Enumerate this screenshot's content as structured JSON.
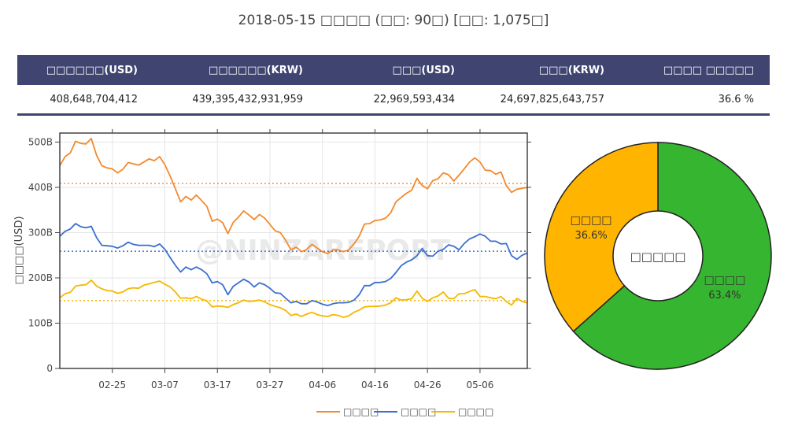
{
  "header": {
    "title": "2018-05-15 □□□□ (□□: 90□)   [□□: 1,075□]"
  },
  "summary": {
    "columns": [
      "□□□□□□(USD)",
      "□□□□□□(KRW)",
      "□□□(USD)",
      "□□□(KRW)",
      "□□□□ □□□□□"
    ],
    "values": [
      "408,648,704,412",
      "439,395,432,931,959",
      "22,969,593,434",
      "24,697,825,643,757",
      "36.6 %"
    ]
  },
  "colors": {
    "total": "#f28a2e",
    "buy": "#3b6fcf",
    "sell": "#f5b800",
    "pie_green": "#36b530",
    "pie_yellow": "#ffb400",
    "header_bg": "#3f4470"
  },
  "chart_data": [
    {
      "type": "line",
      "ylabel": "□□□□(USD)",
      "ylim": [
        0,
        520
      ],
      "yticks": [
        0,
        100,
        200,
        300,
        400,
        500
      ],
      "ytick_labels": [
        "0",
        "100B",
        "200B",
        "300B",
        "400B",
        "500B"
      ],
      "x_start": "2018-02-15",
      "x_end": "2018-05-15",
      "xtick_labels": [
        "02-25",
        "03-07",
        "03-17",
        "03-27",
        "04-06",
        "04-16",
        "04-26",
        "05-06"
      ],
      "grid": true,
      "legend_position": "bottom",
      "watermark": "@NINZAREPORT",
      "series": [
        {
          "name": "□□□□",
          "color_key": "total",
          "mean": 408.6,
          "values": [
            448,
            468,
            476,
            502,
            497,
            496,
            508,
            471,
            448,
            443,
            441,
            432,
            440,
            455,
            452,
            449,
            456,
            463,
            459,
            468,
            450,
            425,
            397,
            368,
            380,
            372,
            383,
            371,
            358,
            325,
            330,
            322,
            298,
            322,
            334,
            348,
            339,
            329,
            340,
            332,
            318,
            304,
            300,
            283,
            262,
            268,
            258,
            263,
            274,
            266,
            258,
            254,
            262,
            262,
            258,
            262,
            275,
            292,
            319,
            320,
            327,
            328,
            332,
            344,
            368,
            378,
            387,
            394,
            420,
            404,
            397,
            415,
            419,
            432,
            428,
            414,
            427,
            441,
            456,
            465,
            456,
            438,
            437,
            429,
            434,
            404,
            389,
            396,
            398,
            400
          ]
        },
        {
          "name": "□□□□",
          "color_key": "buy",
          "mean": 258.9,
          "values": [
            292,
            303,
            308,
            320,
            313,
            311,
            314,
            289,
            272,
            271,
            270,
            266,
            271,
            279,
            274,
            272,
            272,
            272,
            269,
            275,
            263,
            245,
            228,
            213,
            224,
            218,
            224,
            218,
            209,
            189,
            192,
            185,
            163,
            181,
            189,
            197,
            191,
            180,
            189,
            185,
            177,
            167,
            166,
            155,
            145,
            148,
            143,
            143,
            150,
            147,
            142,
            139,
            143,
            145,
            145,
            146,
            151,
            163,
            183,
            183,
            190,
            190,
            192,
            199,
            212,
            227,
            235,
            240,
            249,
            265,
            249,
            248,
            259,
            263,
            273,
            270,
            262,
            276,
            286,
            291,
            297,
            292,
            281,
            281,
            275,
            276,
            249,
            241,
            250,
            255
          ]
        },
        {
          "name": "□□□□",
          "color_key": "sell",
          "mean": 149.8,
          "values": [
            156,
            165,
            168,
            182,
            184,
            185,
            195,
            182,
            176,
            172,
            171,
            166,
            169,
            176,
            178,
            177,
            184,
            187,
            190,
            193,
            186,
            180,
            169,
            155,
            156,
            154,
            159,
            153,
            149,
            136,
            138,
            137,
            135,
            141,
            145,
            151,
            148,
            149,
            151,
            147,
            141,
            137,
            134,
            128,
            117,
            120,
            115,
            120,
            124,
            119,
            116,
            115,
            119,
            117,
            113,
            116,
            124,
            129,
            136,
            137,
            137,
            138,
            140,
            145,
            156,
            151,
            152,
            154,
            171,
            155,
            148,
            156,
            160,
            169,
            155,
            154,
            165,
            165,
            170,
            174,
            159,
            159,
            156,
            154,
            159,
            148,
            140,
            155,
            148,
            145
          ]
        }
      ]
    },
    {
      "type": "pie",
      "center_label": "□□□□□",
      "slices": [
        {
          "label": "□□□□",
          "percent": 63.4,
          "percent_label": "63.4%",
          "color_key": "pie_green"
        },
        {
          "label": "□□□□",
          "percent": 36.6,
          "percent_label": "36.6%",
          "color_key": "pie_yellow"
        }
      ]
    }
  ]
}
